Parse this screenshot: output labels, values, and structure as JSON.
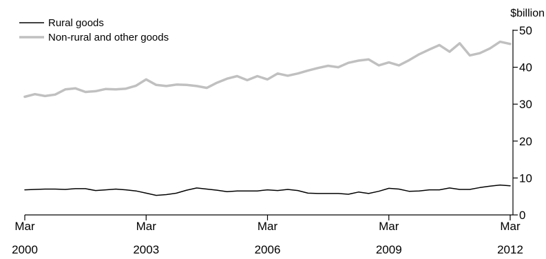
{
  "chart_data": {
    "type": "line",
    "title": "",
    "xlabel": "",
    "ylabel": "$billion",
    "ylim": [
      0,
      50
    ],
    "yticks": [
      0,
      10,
      20,
      30,
      40,
      50
    ],
    "xlim": [
      0,
      48
    ],
    "xticks": [
      {
        "x": 0,
        "label": [
          "Mar",
          "2000"
        ]
      },
      {
        "x": 12,
        "label": [
          "Mar",
          "2003"
        ]
      },
      {
        "x": 24,
        "label": [
          "Mar",
          "2006"
        ]
      },
      {
        "x": 36,
        "label": [
          "Mar",
          "2009"
        ]
      },
      {
        "x": 48,
        "label": [
          "Mar",
          "2012"
        ]
      }
    ],
    "grid": false,
    "legend": "top-left",
    "series": [
      {
        "name": "Rural goods",
        "color": "#000000",
        "values": [
          6.8,
          6.9,
          7.0,
          7.0,
          6.9,
          7.1,
          7.1,
          6.6,
          6.8,
          7.0,
          6.8,
          6.5,
          5.9,
          5.3,
          5.5,
          5.9,
          6.7,
          7.3,
          7.0,
          6.7,
          6.3,
          6.5,
          6.5,
          6.5,
          6.8,
          6.6,
          6.9,
          6.6,
          5.9,
          5.8,
          5.8,
          5.8,
          5.6,
          6.2,
          5.8,
          6.4,
          7.2,
          7.0,
          6.4,
          6.5,
          6.8,
          6.8,
          7.3,
          6.9,
          6.9,
          7.4,
          7.8,
          8.1,
          7.9
        ]
      },
      {
        "name": "Non-rural and other goods",
        "color": "#c0c0c0",
        "values": [
          32.0,
          32.7,
          32.2,
          32.6,
          34.0,
          34.3,
          33.3,
          33.5,
          34.1,
          34.0,
          34.2,
          35.0,
          36.7,
          35.2,
          34.9,
          35.3,
          35.2,
          34.9,
          34.4,
          35.8,
          36.9,
          37.6,
          36.5,
          37.6,
          36.7,
          38.3,
          37.7,
          38.3,
          39.1,
          39.8,
          40.4,
          40.0,
          41.2,
          41.8,
          42.1,
          40.5,
          41.3,
          40.5,
          41.9,
          43.5,
          44.8,
          46.0,
          44.2,
          46.5,
          43.2,
          43.8,
          45.1,
          46.9,
          46.3
        ]
      }
    ]
  }
}
